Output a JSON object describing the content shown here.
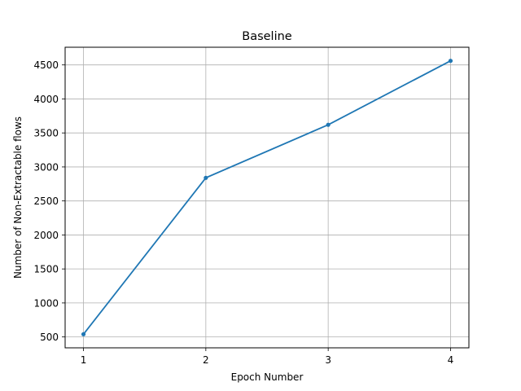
{
  "chart_data": {
    "type": "line",
    "title": "Baseline",
    "xlabel": "Epoch Number",
    "ylabel": "Number of Non-Extractable flows",
    "x": [
      1,
      2,
      3,
      4
    ],
    "series": [
      {
        "values": [
          540,
          2840,
          3620,
          4560
        ],
        "color": "#1f77b4"
      }
    ],
    "xlim": [
      0.85,
      4.15
    ],
    "ylim": [
      340,
      4760
    ],
    "xticks": [
      1,
      2,
      3,
      4
    ],
    "xtick_labels": [
      "1",
      "2",
      "3",
      "4"
    ],
    "yticks": [
      500,
      1000,
      1500,
      2000,
      2500,
      3000,
      3500,
      4000,
      4500
    ],
    "ytick_labels": [
      "500",
      "1000",
      "1500",
      "2000",
      "2500",
      "3000",
      "3500",
      "4000",
      "4500"
    ],
    "grid": true,
    "marker": "circle"
  }
}
